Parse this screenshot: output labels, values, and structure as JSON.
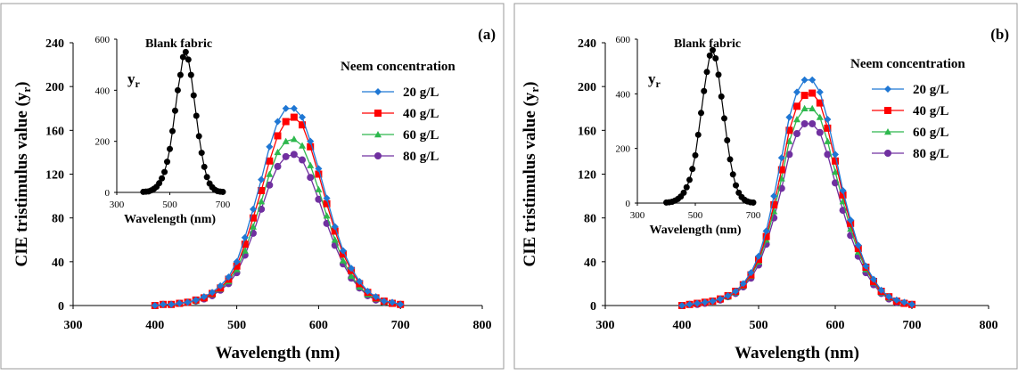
{
  "colors": {
    "blue": "#1f77d4",
    "red": "#ff0000",
    "green": "#2db84d",
    "purple": "#7030a0",
    "black": "#000000"
  },
  "chart_data": [
    {
      "type": "line",
      "panel_label": "(a)",
      "xlabel": "Wavelength (nm)",
      "ylabel": "CIE tristimulus value (y_r)",
      "xlim": [
        300,
        800
      ],
      "ylim": [
        0,
        240
      ],
      "xticks": [
        300,
        400,
        500,
        600,
        700,
        800
      ],
      "yticks": [
        0,
        40,
        80,
        120,
        160,
        200,
        240
      ],
      "legend_title": "Neem concentration",
      "x": [
        400,
        410,
        420,
        430,
        440,
        450,
        460,
        470,
        480,
        490,
        500,
        510,
        520,
        530,
        540,
        550,
        560,
        570,
        580,
        590,
        600,
        610,
        620,
        630,
        640,
        650,
        660,
        670,
        680,
        690,
        700
      ],
      "series": [
        {
          "name": "20 g/L",
          "color": "#1f77d4",
          "marker": "diamond",
          "values": [
            0,
            1,
            1,
            2,
            3,
            5,
            8,
            12,
            18,
            26,
            40,
            62,
            88,
            115,
            145,
            168,
            180,
            180,
            172,
            150,
            125,
            98,
            72,
            50,
            34,
            22,
            13,
            8,
            4,
            3,
            1
          ]
        },
        {
          "name": "40 g/L",
          "color": "#ff0000",
          "marker": "square",
          "values": [
            0,
            1,
            1,
            2,
            3,
            5,
            7,
            11,
            16,
            24,
            36,
            56,
            80,
            105,
            132,
            155,
            168,
            172,
            165,
            145,
            120,
            93,
            68,
            47,
            32,
            20,
            12,
            7,
            4,
            2,
            1
          ]
        },
        {
          "name": "60 g/L",
          "color": "#2db84d",
          "marker": "triangle",
          "values": [
            0,
            1,
            1,
            2,
            3,
            4,
            7,
            10,
            15,
            22,
            33,
            50,
            72,
            95,
            120,
            140,
            150,
            152,
            146,
            128,
            106,
            82,
            60,
            41,
            27,
            17,
            10,
            6,
            3,
            2,
            1
          ]
        },
        {
          "name": "80 g/L",
          "color": "#7030a0",
          "marker": "circle",
          "values": [
            0,
            1,
            1,
            2,
            3,
            4,
            6,
            9,
            14,
            20,
            30,
            46,
            66,
            88,
            110,
            127,
            136,
            138,
            133,
            117,
            97,
            75,
            55,
            38,
            25,
            16,
            9,
            5,
            3,
            2,
            1
          ]
        }
      ],
      "inset": {
        "title": "Blank fabric",
        "ylabel": "y_r",
        "xlabel": "Wavelength (nm)",
        "xlim": [
          300,
          700
        ],
        "ylim": [
          0,
          600
        ],
        "xticks": [
          300,
          500,
          700
        ],
        "yticks": [
          0,
          200,
          400,
          600
        ],
        "x": [
          400,
          410,
          420,
          430,
          440,
          450,
          460,
          470,
          480,
          490,
          500,
          510,
          520,
          530,
          540,
          550,
          560,
          570,
          580,
          590,
          600,
          610,
          620,
          630,
          640,
          650,
          660,
          670,
          680,
          690,
          700
        ],
        "values": [
          2,
          3,
          4,
          8,
          14,
          22,
          36,
          55,
          80,
          120,
          170,
          240,
          320,
          400,
          460,
          530,
          550,
          520,
          460,
          380,
          300,
          220,
          155,
          100,
          60,
          35,
          20,
          10,
          5,
          3,
          2
        ]
      }
    },
    {
      "type": "line",
      "panel_label": "(b)",
      "xlabel": "Wavelength (nm)",
      "ylabel": "CIE tristimulus value (y_r)",
      "xlim": [
        300,
        800
      ],
      "ylim": [
        0,
        240
      ],
      "xticks": [
        300,
        400,
        500,
        600,
        700,
        800
      ],
      "yticks": [
        0,
        40,
        80,
        120,
        160,
        200,
        240
      ],
      "legend_title": "Neem concentration",
      "x": [
        400,
        410,
        420,
        430,
        440,
        450,
        460,
        470,
        480,
        490,
        500,
        510,
        520,
        530,
        540,
        550,
        560,
        570,
        580,
        590,
        600,
        610,
        620,
        630,
        640,
        650,
        660,
        670,
        680,
        690,
        700
      ],
      "series": [
        {
          "name": "20 g/L",
          "color": "#1f77d4",
          "marker": "diamond",
          "values": [
            0,
            1,
            2,
            3,
            4,
            6,
            9,
            13,
            20,
            30,
            45,
            68,
            100,
            135,
            172,
            195,
            206,
            206,
            195,
            170,
            138,
            105,
            78,
            55,
            36,
            24,
            14,
            8,
            5,
            3,
            1
          ]
        },
        {
          "name": "40 g/L",
          "color": "#ff0000",
          "marker": "square",
          "values": [
            0,
            1,
            2,
            3,
            4,
            6,
            9,
            13,
            19,
            28,
            42,
            63,
            92,
            124,
            160,
            182,
            192,
            194,
            185,
            162,
            132,
            101,
            75,
            52,
            35,
            22,
            13,
            8,
            4,
            2,
            1
          ]
        },
        {
          "name": "60 g/L",
          "color": "#2db84d",
          "marker": "triangle",
          "values": [
            0,
            1,
            2,
            3,
            4,
            6,
            8,
            12,
            18,
            27,
            40,
            60,
            86,
            116,
            150,
            170,
            180,
            180,
            172,
            150,
            122,
            95,
            70,
            49,
            33,
            21,
            12,
            7,
            4,
            2,
            1
          ]
        },
        {
          "name": "80 g/L",
          "color": "#7030a0",
          "marker": "circle",
          "values": [
            0,
            1,
            1,
            2,
            4,
            5,
            8,
            11,
            17,
            25,
            37,
            56,
            80,
            107,
            138,
            157,
            166,
            166,
            158,
            138,
            112,
            87,
            64,
            45,
            30,
            19,
            11,
            6,
            3,
            2,
            1
          ]
        }
      ],
      "inset": {
        "title": "Blank fabric",
        "ylabel": "y_r",
        "xlabel": "Wavelength (nm)",
        "xlim": [
          300,
          700
        ],
        "ylim": [
          0,
          600
        ],
        "xticks": [
          300,
          500,
          700
        ],
        "yticks": [
          0,
          200,
          400,
          600
        ],
        "x": [
          400,
          410,
          420,
          430,
          440,
          450,
          460,
          470,
          480,
          490,
          500,
          510,
          520,
          530,
          540,
          550,
          560,
          570,
          580,
          590,
          600,
          610,
          620,
          630,
          640,
          650,
          660,
          670,
          680,
          690,
          700
        ],
        "values": [
          2,
          3,
          5,
          9,
          15,
          24,
          38,
          58,
          85,
          125,
          175,
          250,
          330,
          410,
          480,
          540,
          560,
          530,
          470,
          390,
          310,
          230,
          160,
          105,
          65,
          38,
          22,
          12,
          6,
          3,
          2
        ]
      }
    }
  ]
}
